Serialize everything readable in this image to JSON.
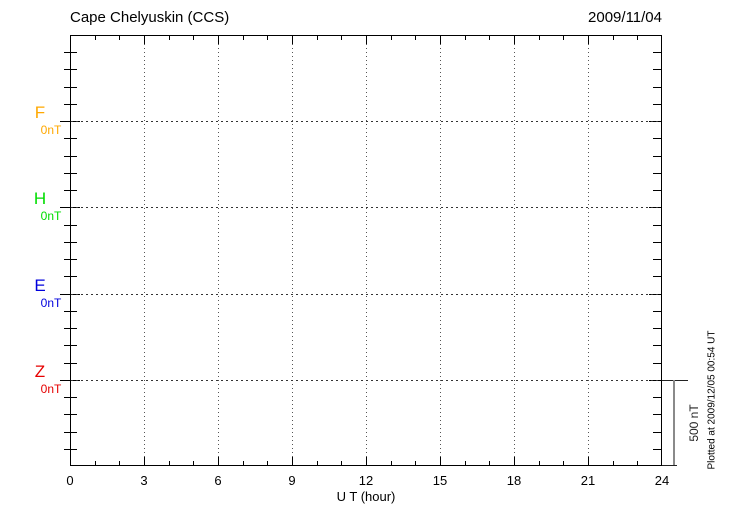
{
  "header": {
    "title": "Cape Chelyuskin (CCS)",
    "date": "2009/11/04"
  },
  "axes": {
    "xlabel": "U T (hour)",
    "x_tick_labels": [
      "0",
      "3",
      "6",
      "9",
      "12",
      "15",
      "18",
      "21",
      "24"
    ]
  },
  "channels": [
    {
      "label": "F",
      "unit": "0nT",
      "color": "#FFA800"
    },
    {
      "label": "H",
      "unit": "0nT",
      "color": "#00DD00"
    },
    {
      "label": "E",
      "unit": "0nT",
      "color": "#0000DD"
    },
    {
      "label": "Z",
      "unit": "0nT",
      "color": "#E60000"
    }
  ],
  "scale_bar": {
    "label": "500 nT"
  },
  "side_note": "Plotted at 2009/12/05 00:54 UT",
  "chart_data": {
    "type": "line",
    "title": "Cape Chelyuskin (CCS)",
    "station": "Cape Chelyuskin",
    "station_code": "CCS",
    "date": "2009/11/04",
    "xlabel": "U T (hour)",
    "xlim": [
      0,
      24
    ],
    "x_ticks": [
      0,
      3,
      6,
      9,
      12,
      15,
      18,
      21,
      24
    ],
    "x_minor_tick_interval_hours": 1,
    "y_scale_bar_nT": 500,
    "y_minor_ticks_per_division": 5,
    "grid": "dotted vertical lines every 3 hours; dotted horizontal baseline for each component",
    "legend_position": "left margin (per-channel baseline labels)",
    "series": [
      {
        "name": "F",
        "baseline_label": "0nT",
        "color": "#FFA800",
        "values": []
      },
      {
        "name": "H",
        "baseline_label": "0nT",
        "color": "#00DD00",
        "values": []
      },
      {
        "name": "E",
        "baseline_label": "0nT",
        "color": "#0000DD",
        "values": []
      },
      {
        "name": "Z",
        "baseline_label": "0nT",
        "color": "#E60000",
        "values": []
      }
    ],
    "plotted_at": "Plotted at 2009/12/05 00:54 UT"
  }
}
